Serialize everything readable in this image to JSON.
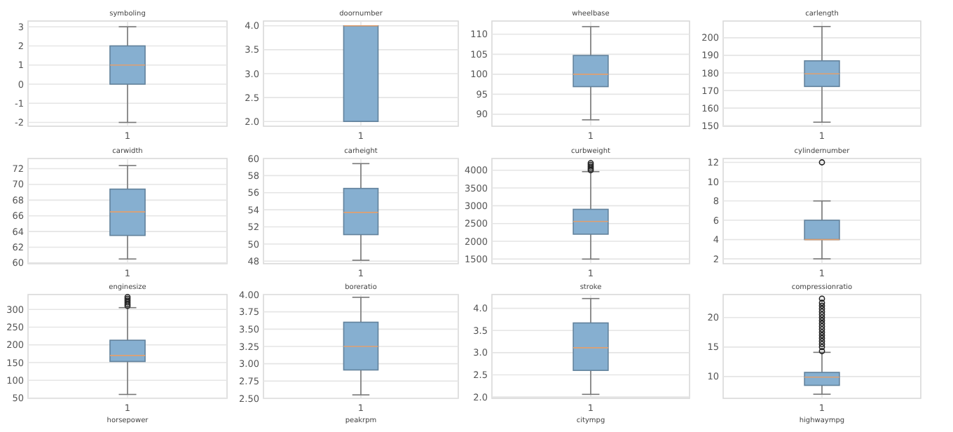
{
  "chart_data": [
    {
      "type": "box",
      "title": "symboling",
      "categories": [
        "1"
      ],
      "color": "#86afd0",
      "boxes": [
        {
          "low": -2,
          "q1": 0,
          "median": 1,
          "q3": 2,
          "high": 3
        }
      ],
      "ylim": [
        -2.2,
        3.3
      ],
      "yticks": [
        -2,
        -1,
        0,
        1,
        2,
        3
      ],
      "grid": true
    },
    {
      "type": "box",
      "title": "doornumber",
      "categories": [
        "1"
      ],
      "color": "#86afd0",
      "boxes": [
        {
          "low": 2,
          "q1": 2,
          "median": 4,
          "q3": 4,
          "high": 4
        }
      ],
      "ylim": [
        1.9,
        4.1
      ],
      "yticks": [
        {
          "value": 2,
          "label": "2.0"
        },
        {
          "value": 2.5,
          "label": "2.5"
        },
        {
          "value": 3,
          "label": "3.0"
        },
        {
          "value": 3.5,
          "label": "3.5"
        },
        {
          "value": 4,
          "label": "4.0"
        }
      ],
      "grid": true
    },
    {
      "type": "box",
      "title": "wheelbase",
      "categories": [
        "1"
      ],
      "color": "#86afd0",
      "boxes": [
        {
          "low": 88.6,
          "q1": 96.9,
          "median": 100,
          "q3": 104.7,
          "high": 111.9
        }
      ],
      "ylim": [
        87,
        113.3
      ],
      "yticks": [
        90,
        95,
        100,
        105,
        110
      ],
      "grid": true
    },
    {
      "type": "box",
      "title": "carlength",
      "categories": [
        "1"
      ],
      "color": "#86afd0",
      "boxes": [
        {
          "low": 152,
          "q1": 172.3,
          "median": 179.5,
          "q3": 186.9,
          "high": 206.4
        }
      ],
      "ylim": [
        149.7,
        209.5
      ],
      "yticks": [
        150,
        160,
        170,
        180,
        190,
        200
      ],
      "grid": true
    },
    {
      "type": "box",
      "title": "carwidth",
      "categories": [
        "1"
      ],
      "color": "#86afd0",
      "boxes": [
        {
          "low": 60.5,
          "q1": 63.5,
          "median": 66.5,
          "q3": 69.4,
          "high": 72.4
        }
      ],
      "ylim": [
        59.9,
        73.3
      ],
      "yticks": [
        60,
        62,
        64,
        66,
        68,
        70,
        72
      ],
      "grid": true
    },
    {
      "type": "box",
      "title": "carheight",
      "categories": [
        "1"
      ],
      "color": "#86afd0",
      "boxes": [
        {
          "low": 48.1,
          "q1": 51.1,
          "median": 53.7,
          "q3": 56.5,
          "high": 59.4
        }
      ],
      "ylim": [
        47.7,
        60
      ],
      "yticks": [
        48,
        50,
        52,
        54,
        56,
        58,
        60
      ],
      "grid": true
    },
    {
      "type": "box",
      "title": "curbweight",
      "categories": [
        "1"
      ],
      "color": "#86afd0",
      "boxes": [
        {
          "low": 1500,
          "q1": 2200,
          "median": 2560,
          "q3": 2900,
          "high": 3960,
          "outliers": [
            4000,
            4050,
            4100,
            4150,
            4200
          ]
        }
      ],
      "ylim": [
        1370,
        4330
      ],
      "yticks": [
        1500,
        2000,
        2500,
        3000,
        3500,
        4000
      ],
      "grid": true
    },
    {
      "type": "box",
      "title": "cylindernumber",
      "categories": [
        "1"
      ],
      "color": "#86afd0",
      "boxes": [
        {
          "low": 2,
          "q1": 4,
          "median": 4,
          "q3": 6,
          "high": 8,
          "outliers": [
            12
          ]
        }
      ],
      "ylim": [
        1.5,
        12.4
      ],
      "yticks": [
        2,
        4,
        6,
        8,
        10,
        12
      ],
      "grid": true
    },
    {
      "type": "box",
      "title": "enginesize",
      "categories": [
        "1"
      ],
      "color": "#86afd0",
      "boxes": [
        {
          "low": 60,
          "q1": 153,
          "median": 170,
          "q3": 213,
          "high": 305,
          "outliers": [
            310,
            315,
            320,
            325,
            330,
            335
          ]
        }
      ],
      "ylim": [
        49,
        342
      ],
      "yticks": [
        50,
        100,
        150,
        200,
        250,
        300
      ],
      "grid": true
    },
    {
      "type": "box",
      "title": "boreratio",
      "categories": [
        "1"
      ],
      "color": "#86afd0",
      "boxes": [
        {
          "low": 2.55,
          "q1": 2.91,
          "median": 3.25,
          "q3": 3.6,
          "high": 3.96
        }
      ],
      "ylim": [
        2.5,
        4
      ],
      "yticks": [
        {
          "value": 2.5,
          "label": "2.50"
        },
        {
          "value": 2.75,
          "label": "2.75"
        },
        {
          "value": 3,
          "label": "3.00"
        },
        {
          "value": 3.25,
          "label": "3.25"
        },
        {
          "value": 3.5,
          "label": "3.50"
        },
        {
          "value": 3.75,
          "label": "3.75"
        },
        {
          "value": 4,
          "label": "4.00"
        }
      ],
      "grid": true
    },
    {
      "type": "box",
      "title": "stroke",
      "categories": [
        "1"
      ],
      "color": "#86afd0",
      "boxes": [
        {
          "low": 2.06,
          "q1": 2.6,
          "median": 3.11,
          "q3": 3.67,
          "high": 4.22
        }
      ],
      "ylim": [
        1.97,
        4.31
      ],
      "yticks": [
        {
          "value": 2,
          "label": "2.0"
        },
        {
          "value": 2.5,
          "label": "2.5"
        },
        {
          "value": 3,
          "label": "3.0"
        },
        {
          "value": 3.5,
          "label": "3.5"
        },
        {
          "value": 4,
          "label": "4.0"
        }
      ],
      "grid": true
    },
    {
      "type": "box",
      "title": "compressionratio",
      "categories": [
        "1"
      ],
      "color": "#86afd0",
      "boxes": [
        {
          "low": 7,
          "q1": 8.5,
          "median": 9.9,
          "q3": 10.7,
          "high": 14.1,
          "outliers": [
            14.3,
            15,
            15.5,
            16,
            16.5,
            17,
            17.5,
            18,
            18.5,
            19,
            19.5,
            20,
            20.5,
            21,
            21.5,
            22,
            22.5,
            23.2
          ]
        }
      ],
      "ylim": [
        6.3,
        23.9
      ],
      "yticks": [
        10,
        15,
        20
      ],
      "grid": true
    },
    {
      "type": "other",
      "title": "horsepower"
    },
    {
      "type": "other",
      "title": "peakrpm"
    },
    {
      "type": "other",
      "title": "citympg"
    },
    {
      "type": "other",
      "title": "highwaympg"
    }
  ]
}
